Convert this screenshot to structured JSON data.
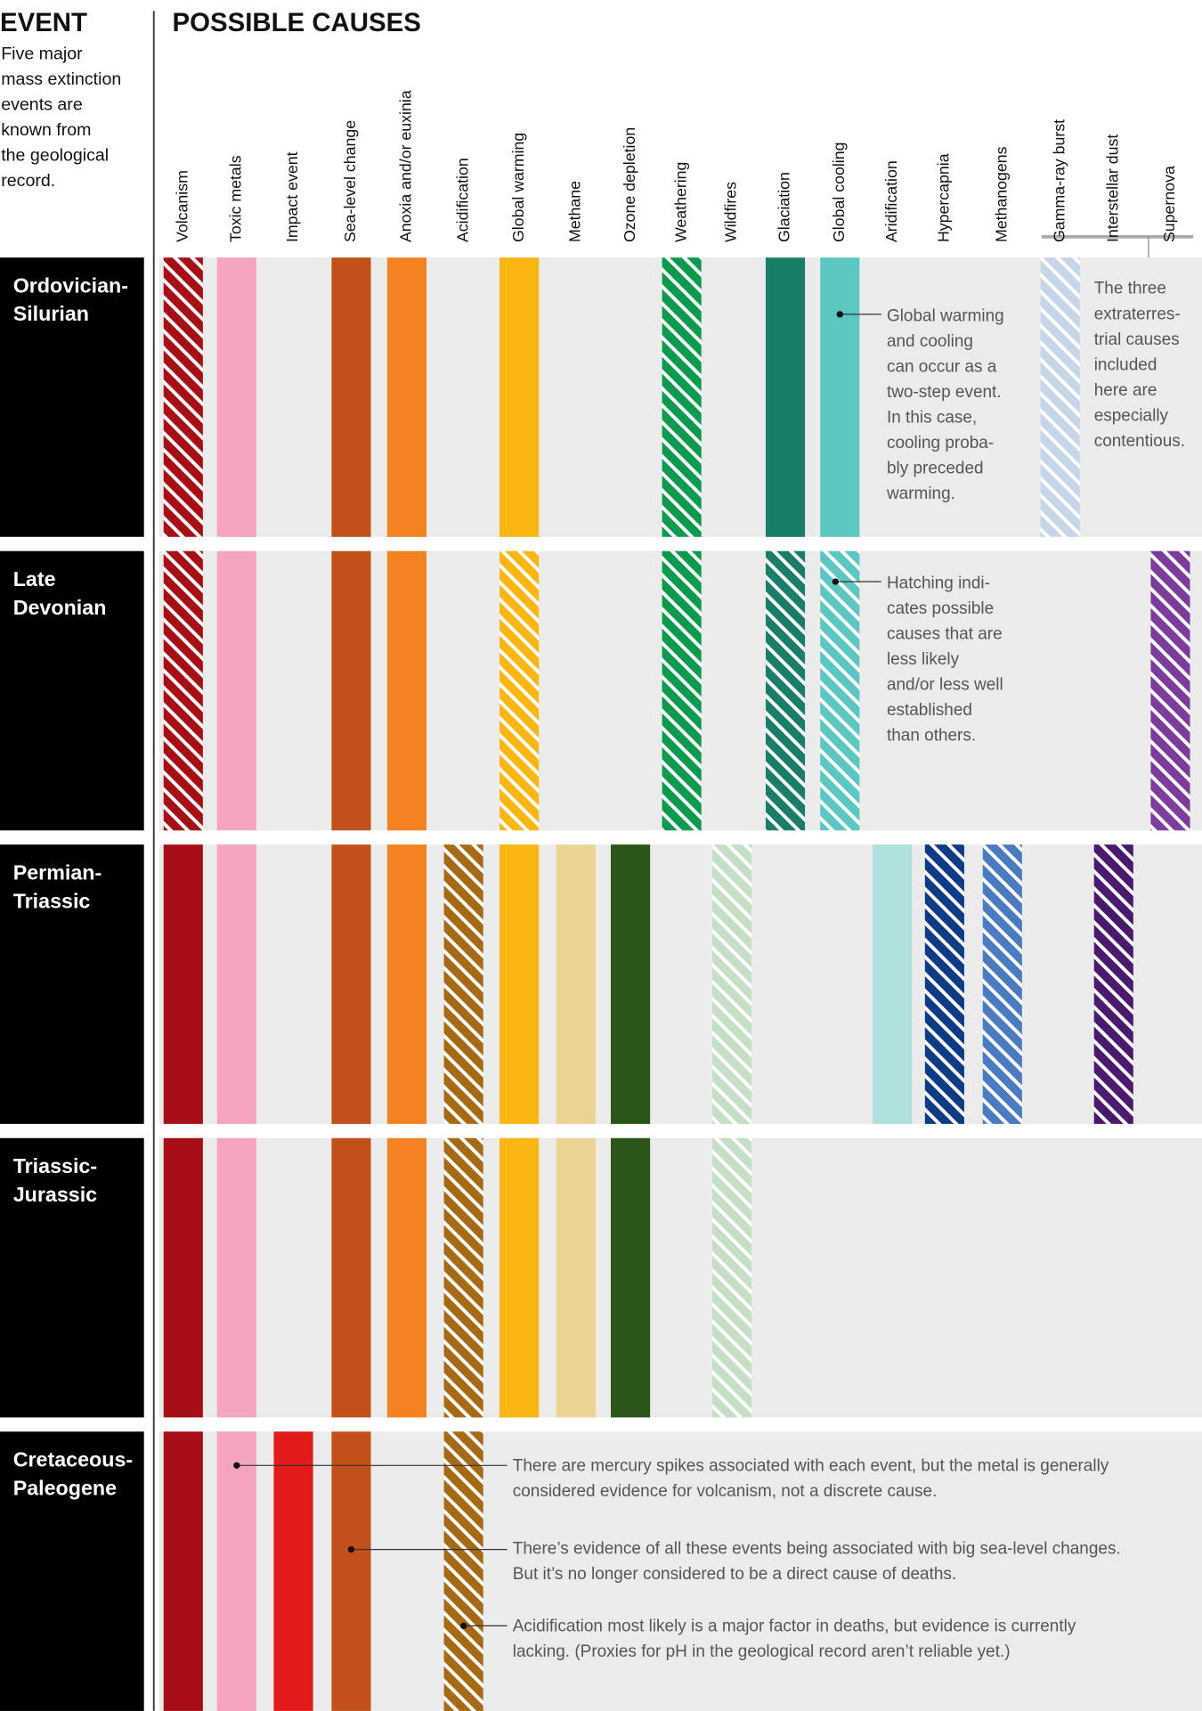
{
  "header": {
    "event_title": "EVENT",
    "event_description": [
      "Five major",
      "mass extinction",
      "events are",
      "known from",
      "the geological",
      "record."
    ],
    "causes_title": "POSSIBLE CAUSES"
  },
  "causes": [
    {
      "name": "Volcanism",
      "color": "#a50f15"
    },
    {
      "name": "Toxic metals",
      "color": "#f4a3c0"
    },
    {
      "name": "Impact event",
      "color": "#e31a1c"
    },
    {
      "name": "Sea-level change",
      "color": "#c1501a"
    },
    {
      "name": "Anoxia and/or euxinia",
      "color": "#f58220"
    },
    {
      "name": "Acidification",
      "color": "#a66a14"
    },
    {
      "name": "Global warming",
      "color": "#fbb614"
    },
    {
      "name": "Methane",
      "color": "#ead493"
    },
    {
      "name": "Ozone depletion",
      "color": "#2a5516"
    },
    {
      "name": "Weathering",
      "color": "#0b9a4e"
    },
    {
      "name": "Wildfires",
      "color": "#c5dfc5"
    },
    {
      "name": "Glaciation",
      "color": "#1a7d6a"
    },
    {
      "name": "Global cooling",
      "color": "#5cc6c0"
    },
    {
      "name": "Aridification",
      "color": "#aee0dc"
    },
    {
      "name": "Hypercapnia",
      "color": "#0d3b86"
    },
    {
      "name": "Methanogens",
      "color": "#4a7bc1"
    },
    {
      "name": "Gamma-ray burst",
      "color": "#c5d6e8"
    },
    {
      "name": "Interstellar dust",
      "color": "#4a1a6e"
    },
    {
      "name": "Supernova",
      "color": "#7b3c9b"
    }
  ],
  "events": [
    {
      "name": [
        "Ordovician-",
        "Silurian"
      ],
      "cells": [
        "hatched",
        "solid",
        null,
        "solid",
        "solid",
        null,
        "solid",
        null,
        null,
        "hatched",
        null,
        "solid",
        "solid",
        null,
        null,
        null,
        "hatched",
        null,
        null
      ]
    },
    {
      "name": [
        "Late",
        "Devonian"
      ],
      "cells": [
        "hatched",
        "solid",
        null,
        "solid",
        "solid",
        null,
        "hatched",
        null,
        null,
        "hatched",
        null,
        "hatched",
        "hatched",
        null,
        null,
        null,
        null,
        null,
        "hatched"
      ]
    },
    {
      "name": [
        "Permian-",
        "Triassic"
      ],
      "cells": [
        "solid",
        "solid",
        null,
        "solid",
        "solid",
        "hatched",
        "solid",
        "solid",
        "solid",
        null,
        "hatched",
        null,
        null,
        "solid",
        "hatched",
        "hatched",
        null,
        "hatched",
        null
      ]
    },
    {
      "name": [
        "Triassic-",
        "Jurassic"
      ],
      "cells": [
        "solid",
        "solid",
        null,
        "solid",
        "solid",
        "hatched",
        "solid",
        "solid",
        "solid",
        null,
        "hatched",
        null,
        null,
        null,
        null,
        null,
        null,
        null,
        null
      ]
    },
    {
      "name": [
        "Cretaceous-",
        "Paleogene"
      ],
      "cells": [
        "solid",
        "solid",
        "solid",
        "solid",
        null,
        "hatched",
        null,
        null,
        null,
        null,
        null,
        null,
        null,
        null,
        null,
        null,
        null,
        null,
        null
      ]
    }
  ],
  "annotations": [
    {
      "lines": [
        "Global warming",
        "and cooling",
        "can occur as a",
        "two-step event.",
        "In this case,",
        "cooling proba-",
        "bly preceded",
        "warming."
      ]
    },
    {
      "lines": [
        "Hatching indi-",
        "cates possible",
        "causes that are",
        "less likely",
        "and/or less well",
        "established",
        "than others."
      ]
    },
    {
      "lines": [
        "The three",
        "extraterres-",
        "trial causes",
        "included",
        "here are",
        "especially",
        "contentious."
      ]
    },
    {
      "lines": [
        "There are mercury spikes associated with each event, but the metal is generally",
        "considered evidence for volcanism, not a discrete cause."
      ]
    },
    {
      "lines": [
        "There’s evidence of all these events being associated with big sea-level changes.",
        "But it’s no longer considered to be a direct cause of deaths."
      ]
    },
    {
      "lines": [
        "Acidification most likely is a major factor in deaths, but evidence is currently",
        "lacking. (Proxies for pH in the geological record aren’t reliable yet.)"
      ]
    }
  ]
}
